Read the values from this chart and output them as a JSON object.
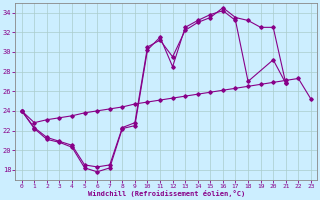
{
  "xlabel": "Windchill (Refroidissement éolien,°C)",
  "bg_color": "#cceeff",
  "line_color": "#880088",
  "grid_color": "#aacccc",
  "xlim": [
    -0.5,
    23.5
  ],
  "ylim": [
    17,
    35
  ],
  "yticks": [
    18,
    20,
    22,
    24,
    26,
    28,
    30,
    32,
    34
  ],
  "xticks": [
    0,
    1,
    2,
    3,
    4,
    5,
    6,
    7,
    8,
    9,
    10,
    11,
    12,
    13,
    14,
    15,
    16,
    17,
    18,
    19,
    20,
    21,
    22,
    23
  ],
  "series1_x": [
    0,
    1,
    2,
    3,
    4,
    5,
    6,
    7,
    8,
    9,
    10,
    11,
    12,
    13,
    14,
    15,
    16,
    17,
    18,
    20,
    21
  ],
  "series1_y": [
    24,
    22.2,
    21.1,
    20.8,
    20.3,
    18.2,
    17.8,
    18.2,
    22.2,
    22.5,
    30.2,
    31.5,
    28.5,
    32.5,
    33.2,
    33.8,
    34.2,
    33.2,
    27.0,
    29.2,
    26.8
  ],
  "series2_x": [
    0,
    1,
    2,
    3,
    4,
    5,
    6,
    7,
    8,
    9,
    10,
    11,
    12,
    13,
    14,
    15,
    16,
    17,
    18,
    19,
    20,
    21
  ],
  "series2_y": [
    24,
    22.3,
    21.3,
    20.9,
    20.5,
    18.5,
    18.3,
    18.5,
    22.3,
    22.8,
    30.5,
    31.2,
    29.5,
    32.2,
    33.0,
    33.5,
    34.5,
    33.5,
    33.2,
    32.5,
    32.5,
    26.8
  ],
  "series3_x": [
    0,
    1,
    2,
    3,
    4,
    5,
    6,
    7,
    8,
    9,
    10,
    11,
    12,
    13,
    14,
    15,
    16,
    17,
    18,
    19,
    20,
    21,
    22,
    23
  ],
  "series3_y": [
    24,
    22.8,
    23.1,
    23.3,
    23.5,
    23.8,
    24.0,
    24.2,
    24.4,
    24.7,
    24.9,
    25.1,
    25.3,
    25.5,
    25.7,
    25.9,
    26.1,
    26.3,
    26.5,
    26.7,
    26.9,
    27.1,
    27.3,
    25.2
  ]
}
